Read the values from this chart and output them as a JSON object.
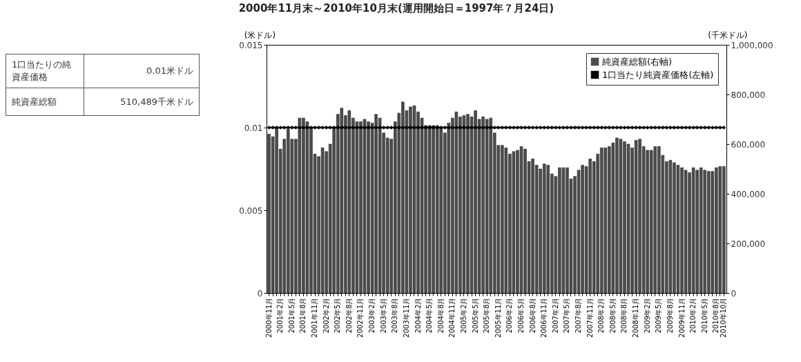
{
  "chart_data": {
    "type": "bar",
    "title": "2000年11月末～2010年10月末(運用開始日＝1997年７月24日)",
    "categories": [
      "2000年11月",
      null,
      null,
      "2001年2月",
      null,
      null,
      "2001年5月",
      null,
      null,
      "2001年8月",
      null,
      null,
      "2001年11月",
      null,
      null,
      "2002年2月",
      null,
      null,
      "2002年5月",
      null,
      null,
      "2002年8月",
      null,
      null,
      "2002年11月",
      null,
      null,
      "2003年2月",
      null,
      null,
      "2003年5月",
      null,
      null,
      "2003年8月",
      null,
      null,
      "2003年11月",
      null,
      null,
      "2004年2月",
      null,
      null,
      "2004年5月",
      null,
      null,
      "2004年8月",
      null,
      null,
      "2004年11月",
      null,
      null,
      "2005年2月",
      null,
      null,
      "2005年5月",
      null,
      null,
      "2005年8月",
      null,
      null,
      "2005年11月",
      null,
      null,
      "2006年2月",
      null,
      null,
      "2006年5月",
      null,
      null,
      "2006年8月",
      null,
      null,
      "2006年11月",
      null,
      null,
      "2007年2月",
      null,
      null,
      "2007年5月",
      null,
      null,
      "2007年8月",
      null,
      null,
      "2007年11月",
      null,
      null,
      "2008年2月",
      null,
      null,
      "2008年5月",
      null,
      null,
      "2008年8月",
      null,
      null,
      "2008年11月",
      null,
      null,
      "2009年2月",
      null,
      null,
      "2009年5月",
      null,
      null,
      "2009年8月",
      null,
      null,
      "2009年11月",
      null,
      null,
      "2010年2月",
      null,
      null,
      "2010年5月",
      null,
      null,
      "2010年8月",
      null,
      "2010年10月"
    ],
    "series": [
      {
        "name": "純資産総額(右軸)",
        "axis": "y2",
        "color": "#4d4d4d",
        "values": [
          640000,
          630000,
          665000,
          580000,
          620000,
          660000,
          620000,
          620000,
          705000,
          705000,
          690000,
          665000,
          560000,
          550000,
          585000,
          570000,
          600000,
          665000,
          720000,
          745000,
          715000,
          735000,
          705000,
          690000,
          690000,
          700000,
          690000,
          685000,
          720000,
          705000,
          645000,
          625000,
          620000,
          690000,
          725000,
          770000,
          735000,
          750000,
          755000,
          730000,
          705000,
          675000,
          675000,
          675000,
          675000,
          670000,
          645000,
          685000,
          705000,
          730000,
          710000,
          715000,
          720000,
          710000,
          735000,
          700000,
          710000,
          700000,
          705000,
          645000,
          595000,
          595000,
          585000,
          560000,
          570000,
          575000,
          590000,
          580000,
          530000,
          540000,
          515000,
          500000,
          520000,
          515000,
          480000,
          470000,
          505000,
          505000,
          505000,
          460000,
          470000,
          495000,
          515000,
          510000,
          540000,
          530000,
          560000,
          585000,
          585000,
          590000,
          605000,
          625000,
          620000,
          610000,
          600000,
          585000,
          615000,
          620000,
          590000,
          575000,
          575000,
          590000,
          590000,
          555000,
          530000,
          535000,
          525000,
          515000,
          505000,
          495000,
          485000,
          505000,
          495000,
          505000,
          495000,
          490000,
          490000,
          505000,
          510000,
          510000
        ]
      },
      {
        "name": "1口当たり純資産価格(左軸)",
        "type": "line",
        "color": "#000000",
        "values": [
          0.01,
          0.01,
          0.01,
          0.01,
          0.01,
          0.01,
          0.01,
          0.01,
          0.01,
          0.01,
          0.01,
          0.01,
          0.01,
          0.01,
          0.01,
          0.01,
          0.01,
          0.01,
          0.01,
          0.01,
          0.01,
          0.01,
          0.01,
          0.01,
          0.01,
          0.01,
          0.01,
          0.01,
          0.01,
          0.01,
          0.01,
          0.01,
          0.01,
          0.01,
          0.01,
          0.01,
          0.01,
          0.01,
          0.01,
          0.01,
          0.01,
          0.01,
          0.01,
          0.01,
          0.01,
          0.01,
          0.01,
          0.01,
          0.01,
          0.01,
          0.01,
          0.01,
          0.01,
          0.01,
          0.01,
          0.01,
          0.01,
          0.01,
          0.01,
          0.01,
          0.01,
          0.01,
          0.01,
          0.01,
          0.01,
          0.01,
          0.01,
          0.01,
          0.01,
          0.01,
          0.01,
          0.01,
          0.01,
          0.01,
          0.01,
          0.01,
          0.01,
          0.01,
          0.01,
          0.01,
          0.01,
          0.01,
          0.01,
          0.01,
          0.01,
          0.01,
          0.01,
          0.01,
          0.01,
          0.01,
          0.01,
          0.01,
          0.01,
          0.01,
          0.01,
          0.01,
          0.01,
          0.01,
          0.01,
          0.01,
          0.01,
          0.01,
          0.01,
          0.01,
          0.01,
          0.01,
          0.01,
          0.01,
          0.01,
          0.01,
          0.01,
          0.01,
          0.01,
          0.01,
          0.01,
          0.01,
          0.01,
          0.01,
          0.01,
          0.01
        ]
      }
    ],
    "marker": "diamond",
    "ylabel": "(米ドル)",
    "ylim": [
      0,
      0.015
    ],
    "yticks": [
      0,
      0.005,
      0.01,
      0.015
    ],
    "y2label": "(千米ドル)",
    "y2lim": [
      0,
      1000000
    ],
    "y2ticks": [
      0,
      {
        "value": 200000,
        "label": "200,000"
      },
      {
        "value": 400000,
        "label": "400,000"
      },
      {
        "value": 600000,
        "label": "600,000"
      },
      {
        "value": 800000,
        "label": "800,000"
      },
      {
        "value": 1000000,
        "label": "1,000,000"
      }
    ],
    "legend": "top right",
    "grid": false,
    "annotations": [
      "1口当たりの純資産価格",
      "0.01米ドル",
      "純資産総額",
      "510,489千米ドル"
    ]
  }
}
